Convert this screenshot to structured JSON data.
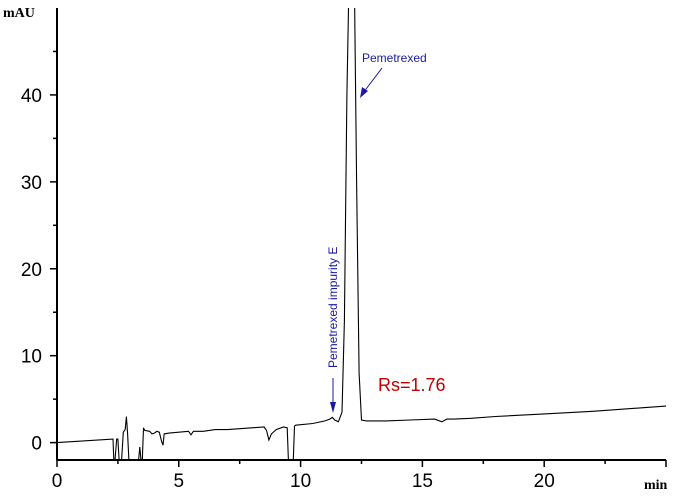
{
  "chart_data": {
    "type": "line",
    "title": "",
    "xlabel": "min",
    "ylabel": "mAU",
    "xlim": [
      0,
      25
    ],
    "ylim": [
      -2,
      50
    ],
    "x_ticks": [
      0,
      5,
      10,
      15,
      20
    ],
    "x_tick_labels": [
      "0",
      "5",
      "10",
      "15",
      "20"
    ],
    "y_ticks": [
      0,
      10,
      20,
      30,
      40
    ],
    "y_tick_labels": [
      "0",
      "10",
      "20",
      "30",
      "40"
    ],
    "x_minor_step": 2.5,
    "y_minor_step": 5,
    "grid": false,
    "series": [
      {
        "color": "#000000",
        "x": [
          0,
          2.3,
          2.33,
          2.38,
          2.45,
          2.5,
          2.55,
          2.65,
          2.72,
          2.8,
          2.85,
          2.9,
          2.95,
          3.0,
          3.35,
          3.4,
          3.45,
          3.5,
          3.55,
          3.6,
          3.8,
          3.9,
          4.0,
          4.1,
          4.2,
          4.3,
          4.35,
          4.4,
          4.6,
          5.0,
          5.4,
          5.5,
          5.6,
          6.0,
          6.5,
          7.0,
          7.5,
          8.0,
          8.5,
          8.6,
          8.7,
          8.8,
          9.0,
          9.3,
          9.45,
          9.5,
          9.6,
          9.7,
          9.75,
          9.8,
          10.5,
          11.0,
          11.2,
          11.3,
          11.4,
          11.55,
          11.7,
          11.8,
          11.9,
          12.0,
          12.1,
          12.2,
          12.3,
          12.4,
          12.5,
          12.7,
          13.5,
          14.5,
          15.5,
          15.8,
          16.0,
          16.3,
          17.0,
          18.0,
          20.0,
          22.0,
          24.0,
          25.0
        ],
        "y": [
          0,
          0.4,
          -2,
          -2,
          0.4,
          0.4,
          -2,
          -2,
          1.2,
          1.5,
          3.0,
          1.0,
          -2,
          -2,
          -2,
          -0.5,
          -2,
          -2,
          1.7,
          1.4,
          1.3,
          1.0,
          1.1,
          1.3,
          1.2,
          0.1,
          -0.3,
          1.0,
          1.1,
          1.2,
          1.3,
          0.9,
          1.3,
          1.3,
          1.5,
          1.5,
          1.6,
          1.7,
          1.8,
          1.4,
          0.3,
          1.0,
          1.5,
          1.8,
          1.7,
          -2,
          -2,
          -2,
          1.9,
          2.0,
          2.2,
          2.5,
          2.7,
          2.9,
          2.6,
          2.4,
          3.5,
          14,
          40,
          55,
          60,
          55,
          30,
          8,
          2.6,
          2.5,
          2.5,
          2.6,
          2.7,
          2.4,
          2.7,
          2.7,
          2.8,
          3.0,
          3.3,
          3.6,
          4.0,
          4.2
        ]
      }
    ],
    "annotations": [
      {
        "text": "Pemetrexed",
        "x": 12.1,
        "color": "#1a1aa0"
      },
      {
        "text": "Pemetrexed impurity E",
        "x": 11.3,
        "color": "#1a1aa0",
        "orientation": "vertical"
      },
      {
        "text": "Rs=1.76",
        "color": "#c00000"
      }
    ]
  }
}
